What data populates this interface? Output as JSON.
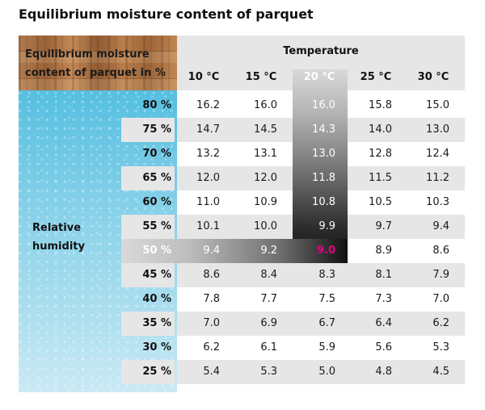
{
  "title": "Equilibrium moisture content of parquet",
  "corner_label_line1": "Equilibrium moisture",
  "corner_label_line2": "content of parquet in %",
  "temperature_title": "Temperature",
  "humidity_label_line1": "Relative",
  "humidity_label_line2": "humidity",
  "columns": [
    "10 °C",
    "15 °C",
    "20 °C",
    "25 °C",
    "30 °C"
  ],
  "highlight": {
    "column": "20 °C",
    "row": "50 %",
    "value": "9.0",
    "value_color": "#e5007e"
  },
  "rows": [
    {
      "rh": "80 %",
      "values": [
        "16.2",
        "16.0",
        "16.0",
        "15.8",
        "15.0"
      ]
    },
    {
      "rh": "75 %",
      "values": [
        "14.7",
        "14.5",
        "14.3",
        "14.0",
        "13.0"
      ]
    },
    {
      "rh": "70 %",
      "values": [
        "13.2",
        "13.1",
        "13.0",
        "12.8",
        "12.4"
      ]
    },
    {
      "rh": "65 %",
      "values": [
        "12.0",
        "12.0",
        "11.8",
        "11.5",
        "11.2"
      ]
    },
    {
      "rh": "60 %",
      "values": [
        "11.0",
        "10.9",
        "10.8",
        "10.5",
        "10.3"
      ]
    },
    {
      "rh": "55 %",
      "values": [
        "10.1",
        "10.0",
        "9.9",
        "9.7",
        "9.4"
      ]
    },
    {
      "rh": "50 %",
      "values": [
        "9.4",
        "9.2",
        "9.0",
        "8.9",
        "8.6"
      ]
    },
    {
      "rh": "45 %",
      "values": [
        "8.6",
        "8.4",
        "8.3",
        "8.1",
        "7.9"
      ]
    },
    {
      "rh": "40 %",
      "values": [
        "7.8",
        "7.7",
        "7.5",
        "7.3",
        "7.0"
      ]
    },
    {
      "rh": "35 %",
      "values": [
        "7.0",
        "6.9",
        "6.7",
        "6.4",
        "6.2"
      ]
    },
    {
      "rh": "30 %",
      "values": [
        "6.2",
        "6.1",
        "5.9",
        "5.6",
        "5.3"
      ]
    },
    {
      "rh": "25 %",
      "values": [
        "5.4",
        "5.3",
        "5.0",
        "4.8",
        "4.5"
      ]
    }
  ]
}
